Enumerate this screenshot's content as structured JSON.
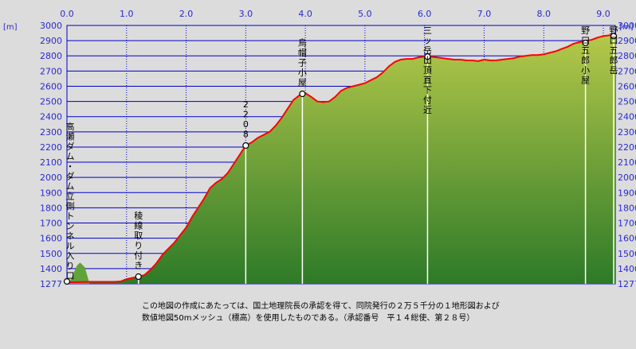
{
  "chart_data": {
    "type": "area",
    "title": "",
    "xlabel": "",
    "ylabel": "[m]",
    "xlim": [
      0,
      9.2
    ],
    "ylim": [
      1277,
      3000
    ],
    "x_ticks": [
      "0.0",
      "1.0",
      "2.0",
      "3.0",
      "4.0",
      "5.0",
      "6.0",
      "7.0",
      "8.0",
      "9.0"
    ],
    "x_tick_values": [
      0,
      1,
      2,
      3,
      4,
      5,
      6,
      7,
      8,
      9
    ],
    "y_ticks": [
      "1277",
      "1400",
      "1500",
      "1600",
      "1700",
      "1800",
      "1900",
      "2000",
      "2100",
      "2200",
      "2300",
      "2400",
      "2500",
      "2600",
      "2700",
      "2800",
      "2900",
      "3000"
    ],
    "y_tick_values": [
      1277,
      1400,
      1500,
      1600,
      1700,
      1800,
      1900,
      2000,
      2100,
      2200,
      2300,
      2400,
      2500,
      2600,
      2700,
      2800,
      2900,
      3000
    ],
    "grid": true,
    "colors": {
      "fill_top": "#b4c84a",
      "fill_bottom": "#2e7a28",
      "line": "#ff0000",
      "grid": "#0000cc",
      "plot_bg": "#dcdcdc",
      "axis_text": "#2a2ad0"
    },
    "series": [
      {
        "x": [
          0,
          0.1,
          0.2,
          0.4,
          0.6,
          0.8,
          0.9,
          1.0,
          1.1,
          1.2,
          1.3,
          1.4,
          1.5,
          1.6,
          1.7,
          1.8,
          1.9,
          2.0,
          2.1,
          2.2,
          2.3,
          2.4,
          2.5,
          2.6,
          2.7,
          2.8,
          2.9,
          3.0,
          3.1,
          3.2,
          3.3,
          3.4,
          3.5,
          3.6,
          3.7,
          3.8,
          3.9,
          4.0,
          4.1,
          4.2,
          4.3,
          4.4,
          4.5,
          4.6,
          4.7,
          4.8,
          4.9,
          5.0,
          5.1,
          5.2,
          5.3,
          5.4,
          5.5,
          5.6,
          5.7,
          5.8,
          5.9,
          6.0,
          6.1,
          6.2,
          6.3,
          6.4,
          6.5,
          6.6,
          6.7,
          6.8,
          6.9,
          7.0,
          7.1,
          7.2,
          7.3,
          7.4,
          7.5,
          7.6,
          7.7,
          7.8,
          7.9,
          8.0,
          8.1,
          8.2,
          8.3,
          8.4,
          8.5,
          8.6,
          8.7,
          8.8,
          8.9,
          9.0,
          9.1,
          9.2
        ],
        "y": [
          1290,
          1290,
          1292,
          1293,
          1293,
          1293,
          1296,
          1315,
          1325,
          1335,
          1348,
          1390,
          1435,
          1490,
          1530,
          1570,
          1620,
          1670,
          1740,
          1800,
          1860,
          1930,
          1965,
          1990,
          2030,
          2090,
          2150,
          2210,
          2230,
          2260,
          2280,
          2300,
          2340,
          2390,
          2450,
          2510,
          2540,
          2555,
          2530,
          2500,
          2495,
          2500,
          2530,
          2570,
          2590,
          2600,
          2610,
          2620,
          2640,
          2660,
          2690,
          2730,
          2760,
          2775,
          2780,
          2780,
          2790,
          2795,
          2795,
          2790,
          2785,
          2780,
          2775,
          2775,
          2770,
          2770,
          2765,
          2775,
          2770,
          2770,
          2775,
          2780,
          2785,
          2795,
          2800,
          2805,
          2805,
          2810,
          2820,
          2830,
          2845,
          2860,
          2880,
          2890,
          2900,
          2905,
          2920,
          2930,
          2935,
          2935
        ]
      }
    ],
    "annotations": [
      {
        "x": 0.0,
        "y": 1277,
        "label": "高瀬ダム・ダム立側トンネル入り口"
      },
      {
        "x": 1.2,
        "y": 1335,
        "label": "稜線取り付き"
      },
      {
        "x": 3.0,
        "y": 2210,
        "label": "2208"
      },
      {
        "x": 3.95,
        "y": 2550,
        "label": "烏帽子小屋"
      },
      {
        "x": 6.05,
        "y": 2795,
        "label": "三ッ岳山頂直下付近"
      },
      {
        "x": 8.7,
        "y": 2885,
        "label": "野口五郎小屋"
      },
      {
        "x": 9.2,
        "y": 2930,
        "label": "野口五郎岳"
      }
    ]
  },
  "footer": {
    "line1": "この地図の作成にあたっては、国土地理院長の承認を得て、同院発行の２万５千分の１地形図および",
    "line2": "数値地図50mメッシュ（標高）を使用したものである。（承認番号　平１４総使、第２８号）"
  }
}
